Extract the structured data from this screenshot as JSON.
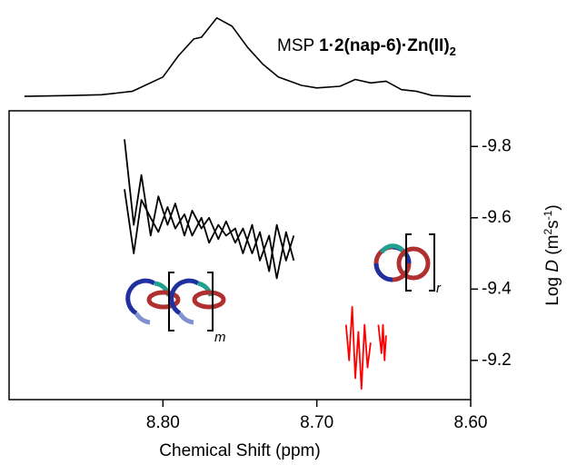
{
  "chart_data": {
    "type": "line",
    "title_parts": [
      "MSP ",
      "1·2(nap-6)·Zn(II)",
      "2"
    ],
    "x_label": "Chemical Shift (ppm)",
    "y_label_parts": [
      "Log ",
      "D",
      " (m",
      "2",
      "s",
      "-1",
      ")"
    ],
    "annotations": [
      "m",
      "r"
    ],
    "xlim": [
      8.9,
      8.6
    ],
    "xticks": [
      {
        "value": 8.8,
        "label": "8.80"
      },
      {
        "value": 8.7,
        "label": "8.70"
      },
      {
        "value": 8.6,
        "label": "8.60"
      }
    ],
    "ylim": [
      -9.9,
      -9.09
    ],
    "yticks": [
      -9.8,
      -9.6,
      -9.4,
      -9.2
    ],
    "spectrum": {
      "color": "#000000",
      "x": [
        8.89,
        8.86,
        8.84,
        8.82,
        8.8,
        8.79,
        8.78,
        8.775,
        8.765,
        8.755,
        8.745,
        8.735,
        8.725,
        8.71,
        8.7,
        8.685,
        8.675,
        8.665,
        8.655,
        8.645,
        8.635,
        8.625,
        8.61,
        8.6
      ],
      "values": [
        2,
        3,
        4,
        8,
        25,
        50,
        70,
        72,
        95,
        85,
        60,
        40,
        25,
        15,
        12,
        14,
        22,
        18,
        20,
        10,
        8,
        3,
        2,
        2
      ]
    },
    "series": [
      {
        "color": "#000000",
        "x": [
          8.825,
          8.819,
          8.814,
          8.808,
          8.803,
          8.797,
          8.792,
          8.786,
          8.781,
          8.775,
          8.77,
          8.764,
          8.759,
          8.753,
          8.748,
          8.742,
          8.737,
          8.731,
          8.726,
          8.72,
          8.715
        ],
        "values": [
          -9.82,
          -9.58,
          -9.72,
          -9.55,
          -9.66,
          -9.58,
          -9.64,
          -9.55,
          -9.62,
          -9.57,
          -9.6,
          -9.54,
          -9.59,
          -9.53,
          -9.57,
          -9.5,
          -9.56,
          -9.45,
          -9.58,
          -9.48,
          -9.55
        ]
      },
      {
        "color": "#000000",
        "x": [
          8.825,
          8.819,
          8.814,
          8.808,
          8.803,
          8.797,
          8.792,
          8.786,
          8.781,
          8.775,
          8.77,
          8.764,
          8.759,
          8.753,
          8.748,
          8.742,
          8.737,
          8.731,
          8.726,
          8.72,
          8.715
        ],
        "values": [
          -9.68,
          -9.5,
          -9.65,
          -9.6,
          -9.56,
          -9.63,
          -9.57,
          -9.61,
          -9.55,
          -9.6,
          -9.53,
          -9.58,
          -9.55,
          -9.57,
          -9.5,
          -9.58,
          -9.48,
          -9.55,
          -9.43,
          -9.56,
          -9.48
        ]
      },
      {
        "color": "#ff0000",
        "x": [
          8.681,
          8.679,
          8.677,
          8.675,
          8.673,
          8.671,
          8.669,
          8.667,
          8.665
        ],
        "values": [
          -9.3,
          -9.2,
          -9.35,
          -9.15,
          -9.28,
          -9.12,
          -9.3,
          -9.18,
          -9.25
        ]
      },
      {
        "color": "#ff0000",
        "x": [
          8.66,
          8.658,
          8.657,
          8.656,
          8.655
        ],
        "values": [
          -9.3,
          -9.22,
          -9.3,
          -9.2,
          -9.27
        ]
      }
    ]
  }
}
